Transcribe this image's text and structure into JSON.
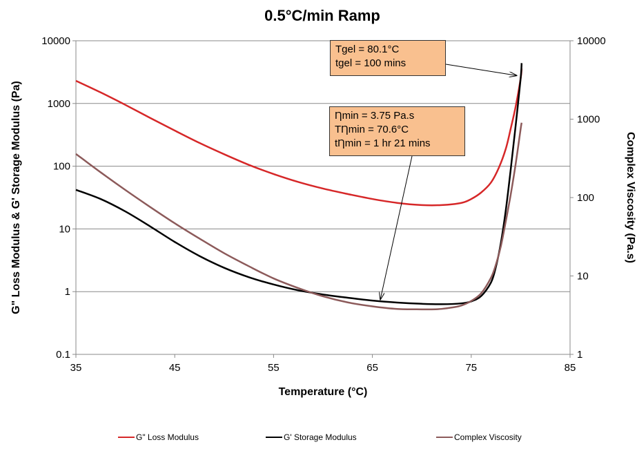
{
  "chart_data": {
    "type": "line",
    "title": "0.5°C/min Ramp",
    "xlabel": "Temperature (°C)",
    "ylabel_left": "G\" Loss Modulus & G' Storage Modulus (Pa)",
    "ylabel_right": "Complex Viscosity (Pa.s)",
    "xlim": [
      35,
      85
    ],
    "xticks": [
      "35",
      "45",
      "55",
      "65",
      "75",
      "85"
    ],
    "ylim_left": [
      0.1,
      10000
    ],
    "yticks_left": [
      "0.1",
      "1",
      "10",
      "100",
      "1000",
      "10000"
    ],
    "ylim_right": [
      1,
      10000
    ],
    "yticks_right": [
      "1",
      "10",
      "100",
      "1000",
      "10000"
    ],
    "log_scale": true,
    "grid": "horizontal",
    "legend_position": "bottom",
    "series": [
      {
        "name": "G\" Loss Modulus",
        "axis": "left",
        "color": "#d62728",
        "x": [
          35,
          37.5,
          40,
          42.5,
          45,
          47.5,
          50,
          52.5,
          55,
          57.5,
          60,
          62.5,
          65,
          67.5,
          70,
          72,
          74,
          75,
          76,
          77,
          77.8,
          78.5,
          79,
          79.5,
          80,
          80.1
        ],
        "y": [
          2300,
          1500,
          950,
          590,
          370,
          235,
          155,
          105,
          75,
          56,
          44,
          36,
          30,
          26,
          24,
          24,
          26,
          30,
          38,
          55,
          95,
          190,
          400,
          900,
          2500,
          3600
        ]
      },
      {
        "name": "G' Storage Modulus",
        "axis": "left",
        "color": "#000000",
        "x": [
          35,
          37.5,
          40,
          42.5,
          45,
          47.5,
          50,
          52.5,
          55,
          57.5,
          60,
          62.5,
          65,
          67.5,
          70,
          72,
          74,
          75,
          76,
          77,
          77.5,
          78,
          78.5,
          79,
          79.5,
          80,
          80.1
        ],
        "y": [
          42,
          30,
          19,
          11,
          6.2,
          3.7,
          2.4,
          1.7,
          1.3,
          1.05,
          0.9,
          0.8,
          0.72,
          0.67,
          0.64,
          0.63,
          0.65,
          0.7,
          0.85,
          1.4,
          2.5,
          6,
          20,
          90,
          450,
          2500,
          4400
        ]
      },
      {
        "name": "Complex Viscosity",
        "axis": "right",
        "color": "#8c5a5a",
        "x": [
          35,
          37.5,
          40,
          42.5,
          45,
          47.5,
          50,
          52.5,
          55,
          57.5,
          60,
          62.5,
          65,
          67.5,
          70,
          71,
          72,
          73,
          74,
          75,
          76,
          77,
          77.5,
          78,
          78.5,
          79,
          79.5,
          80,
          80.1
        ],
        "y": [
          360,
          210,
          125,
          76,
          47,
          30,
          19.5,
          13.3,
          9.3,
          7,
          5.5,
          4.6,
          4.1,
          3.8,
          3.75,
          3.75,
          3.8,
          3.95,
          4.2,
          4.8,
          6,
          9.5,
          14,
          24,
          50,
          110,
          270,
          750,
          900
        ]
      }
    ],
    "annotations": [
      {
        "lines": [
          "Tgel = 80.1°C",
          "tgel = 100 mins"
        ],
        "points_to": {
          "x": 79.6,
          "y_right": 3600
        }
      },
      {
        "lines": [
          "Ƞmin = 3.75 Pa.s",
          "TȠmin = 70.6°C",
          "tȠmin = 1 hr 21 mins"
        ],
        "points_to": {
          "x": 65.8,
          "y_right": 5
        }
      }
    ]
  }
}
